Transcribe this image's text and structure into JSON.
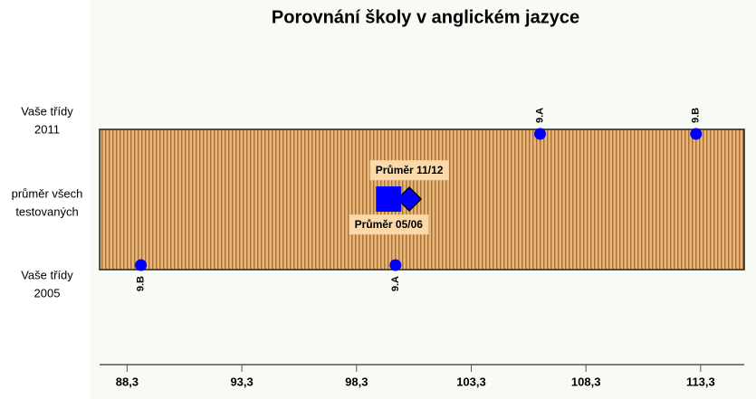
{
  "chart_data": {
    "type": "dot",
    "title": "Porovnání školy v anglickém jazyce",
    "categories": [
      [
        "Vaše třídy",
        "2011"
      ],
      [
        "průměr všech",
        "testovaných"
      ],
      [
        "Vaše třídy",
        "2005"
      ]
    ],
    "rows": [
      {
        "points": [
          {
            "label": "9.A",
            "value": 106.3
          },
          {
            "label": "9.B",
            "value": 113.1
          }
        ]
      },
      {
        "averages": [
          {
            "label": "Průměr 11/12",
            "value": 100.6,
            "marker": "diamond"
          },
          {
            "label": "Průměr 05/06",
            "value": 99.7,
            "marker": "square"
          }
        ]
      },
      {
        "points": [
          {
            "label": "9.B",
            "value": 88.9
          },
          {
            "label": "9.A",
            "value": 100.0
          }
        ]
      }
    ],
    "color": "#0000ff",
    "xlim": [
      87.1,
      115.2
    ],
    "xticks": [
      {
        "value": 88.3,
        "label": "88,3"
      },
      {
        "value": 93.3,
        "label": "93,3"
      },
      {
        "value": 98.3,
        "label": "98,3"
      },
      {
        "value": 103.3,
        "label": "103,3"
      },
      {
        "value": 108.3,
        "label": "108,3"
      },
      {
        "value": 113.3,
        "label": "113,3"
      }
    ]
  }
}
